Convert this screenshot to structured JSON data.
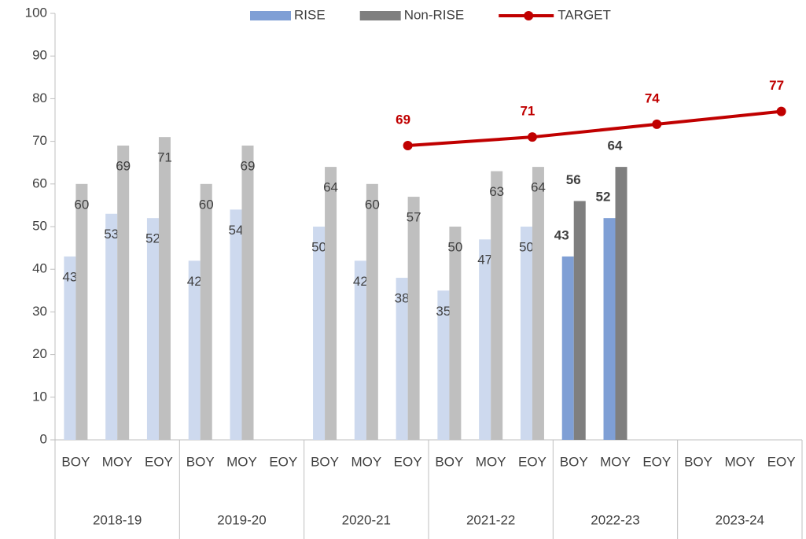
{
  "chart_data": {
    "type": "bar",
    "categories": [
      "BOY",
      "MOY",
      "EOY",
      "BOY",
      "MOY",
      "EOY",
      "BOY",
      "MOY",
      "EOY",
      "BOY",
      "MOY",
      "EOY",
      "BOY",
      "MOY",
      "EOY",
      "BOY",
      "MOY",
      "EOY"
    ],
    "groups": [
      "2018-19",
      "2019-20",
      "2020-21",
      "2021-22",
      "2022-23",
      "2023-24"
    ],
    "highlight_group": "2022-23",
    "series": [
      {
        "name": "RISE",
        "color": "#7f9fd5",
        "light_color": "#cdd9ee",
        "values": [
          43,
          53,
          52,
          42,
          54,
          null,
          50,
          42,
          38,
          35,
          47,
          50,
          43,
          52,
          null,
          null,
          null,
          null
        ]
      },
      {
        "name": "Non-RISE",
        "color": "#7f7f7f",
        "light_color": "#bfbfbf",
        "values": [
          60,
          69,
          71,
          60,
          69,
          null,
          64,
          60,
          57,
          50,
          63,
          64,
          56,
          64,
          null,
          null,
          null,
          null
        ]
      },
      {
        "name": "TARGET",
        "type": "line",
        "color": "#c00000",
        "connect_gaps": true,
        "values": [
          null,
          null,
          null,
          null,
          null,
          null,
          null,
          null,
          69,
          null,
          null,
          71,
          null,
          null,
          74,
          null,
          null,
          77
        ]
      }
    ],
    "ylim": [
      0,
      100
    ],
    "yticks": [
      0,
      10,
      20,
      30,
      40,
      50,
      60,
      70,
      80,
      90,
      100
    ],
    "legend": "top"
  }
}
